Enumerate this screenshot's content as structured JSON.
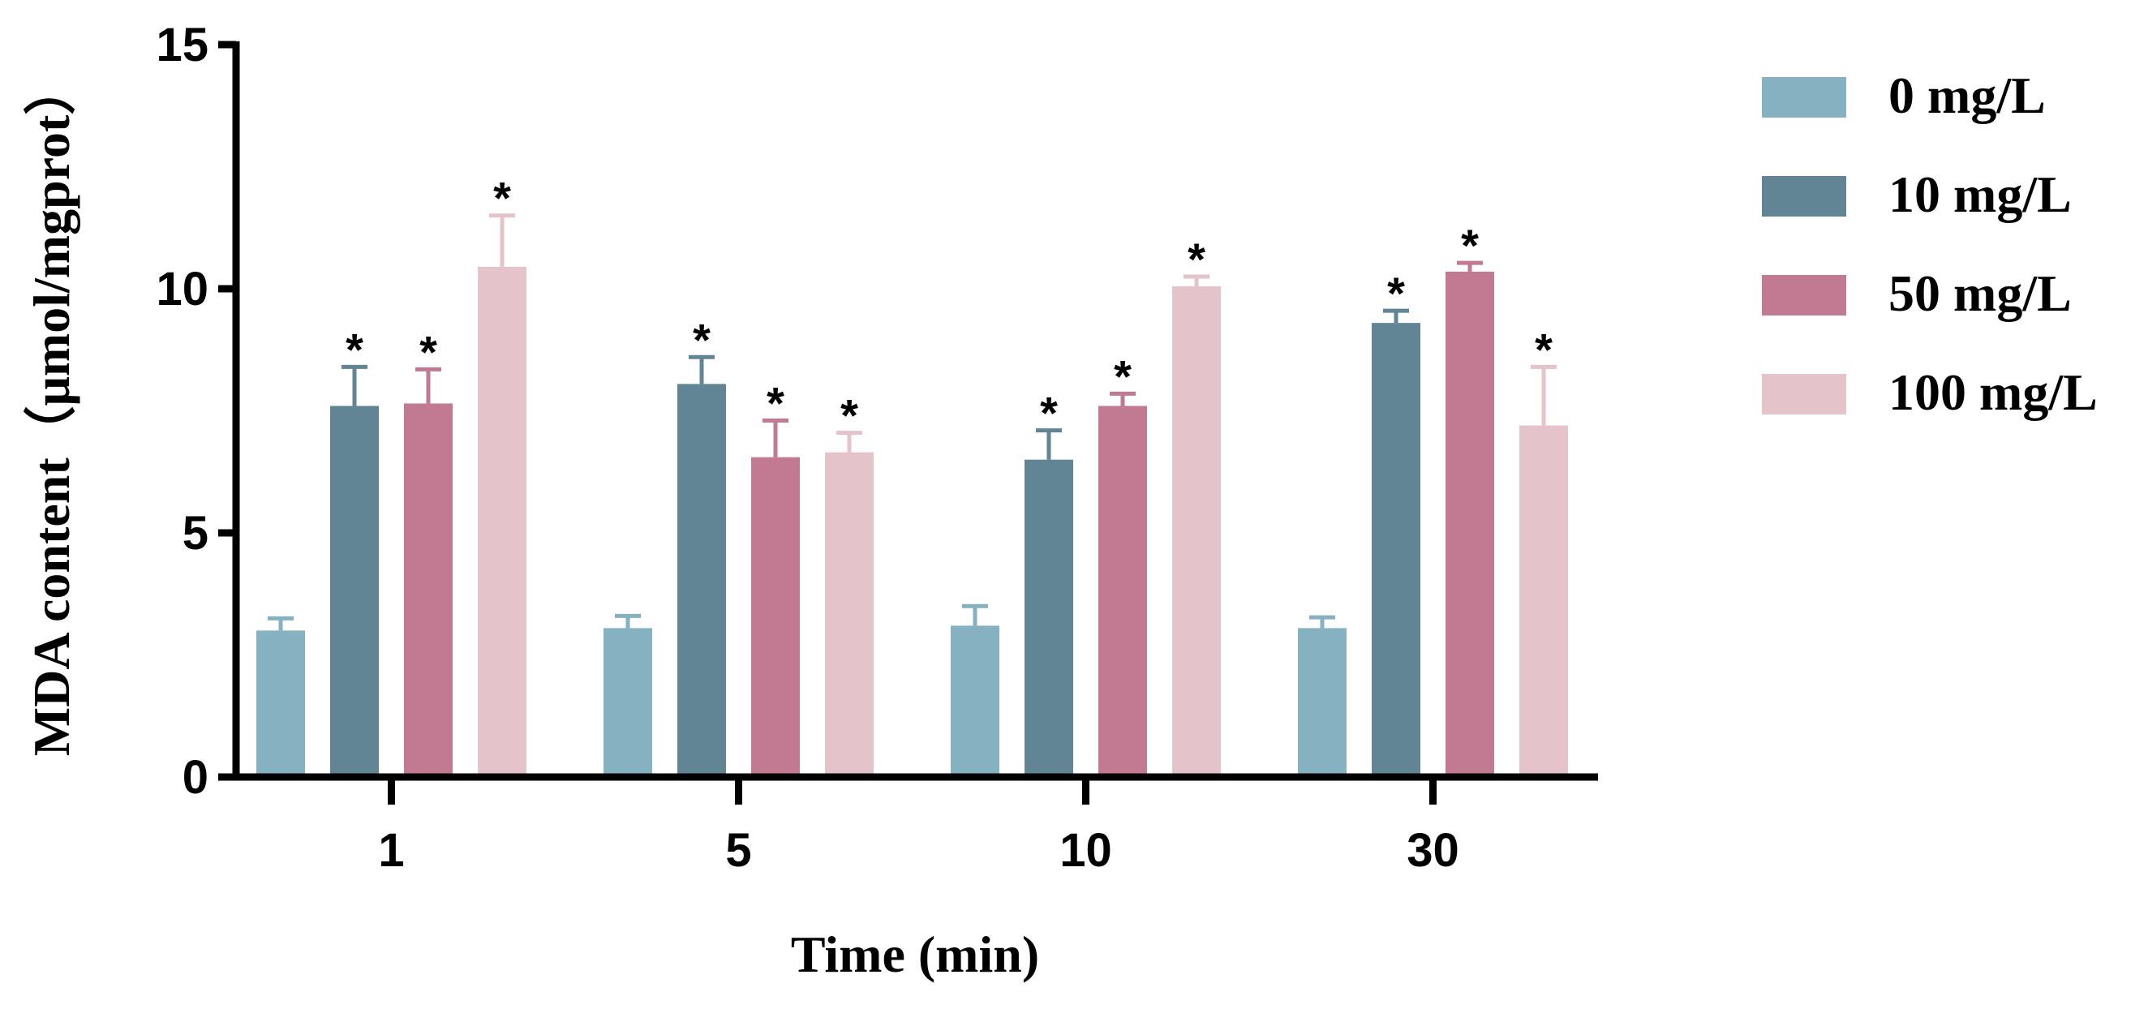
{
  "chart_data": {
    "type": "bar",
    "title": "",
    "xlabel": "Time (min)",
    "ylabel": "MDA content（μmol/mgprot）",
    "ylim": [
      0,
      15
    ],
    "yticks": [
      "0",
      "5",
      "10",
      "15"
    ],
    "categories": [
      "1",
      "5",
      "10",
      "30"
    ],
    "significance_marker": "*",
    "series": [
      {
        "name": "0 mg/L",
        "color": "#85B1C1",
        "values": [
          3.0,
          3.05,
          3.1,
          3.05
        ],
        "errors": [
          0.25,
          0.25,
          0.4,
          0.22
        ],
        "significant": [
          false,
          false,
          false,
          false
        ]
      },
      {
        "name": "10 mg/L",
        "color": "#618594",
        "values": [
          7.6,
          8.05,
          6.5,
          9.3
        ],
        "errors": [
          0.8,
          0.55,
          0.6,
          0.25
        ],
        "significant": [
          true,
          true,
          true,
          true
        ]
      },
      {
        "name": "50 mg/L",
        "color": "#C17A91",
        "values": [
          7.65,
          6.55,
          7.6,
          10.35
        ],
        "errors": [
          0.7,
          0.75,
          0.25,
          0.18
        ],
        "significant": [
          true,
          true,
          true,
          true
        ]
      },
      {
        "name": "100 mg/L",
        "color": "#E5C3CA",
        "values": [
          10.45,
          6.65,
          10.05,
          7.2
        ],
        "errors": [
          1.05,
          0.4,
          0.2,
          1.2
        ],
        "significant": [
          true,
          true,
          true,
          true
        ]
      }
    ],
    "legend_position": "top-right"
  }
}
